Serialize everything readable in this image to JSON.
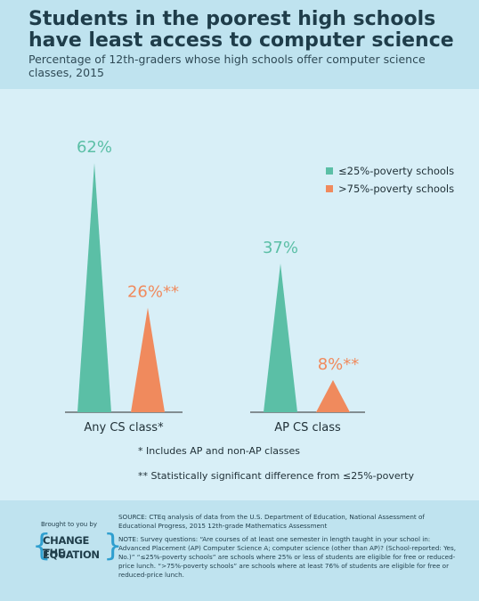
{
  "header": {
    "title": "Students in the poorest high schools have least access to computer science",
    "subtitle": "Percentage of 12th-graders whose high schools offer computer science classes, 2015"
  },
  "chart_data": {
    "type": "bar",
    "categories": [
      "Any CS class",
      "AP CS class"
    ],
    "category_labels": [
      "Any CS class*",
      "AP CS class"
    ],
    "series": [
      {
        "name": "≤25%-poverty schools",
        "values": [
          62,
          37
        ],
        "labels": [
          "62%",
          "37%"
        ],
        "color": "#5bbfa6"
      },
      {
        "name": ">75%-poverty schools",
        "values": [
          26,
          8
        ],
        "labels": [
          "26%**",
          "8%**"
        ],
        "color": "#f08a5d"
      }
    ],
    "ylim": [
      0,
      70
    ],
    "legend_position": "right",
    "grid": false
  },
  "footnotes": {
    "asterisk": "* Includes AP and non-AP classes",
    "double_asterisk": "** Statistically significant difference from ≤25%-poverty"
  },
  "footer": {
    "brought_by": "Brought to you by",
    "logo_line1": "CHANGE THE",
    "logo_line2": "EQUATION",
    "logo_brace_left": "{",
    "logo_brace_right": "}",
    "source": "SOURCE: CTEq analysis of data from the U.S. Department of Education, National Assessment of Educational Progress, 2015 12th-grade Mathematics Assessment",
    "note": "NOTE: Survey questions: “Are courses of at least one semester in length taught in your school in: Advanced Placement (AP) Computer Science A; computer science (other than AP)? (School-reported: Yes, No.)” “≤25%-poverty schools” are schools where 25% or less of students are eligible for free or reduced-price lunch. “>75%-poverty schools” are schools where at least 76% of students are eligible for free or reduced-price lunch."
  }
}
